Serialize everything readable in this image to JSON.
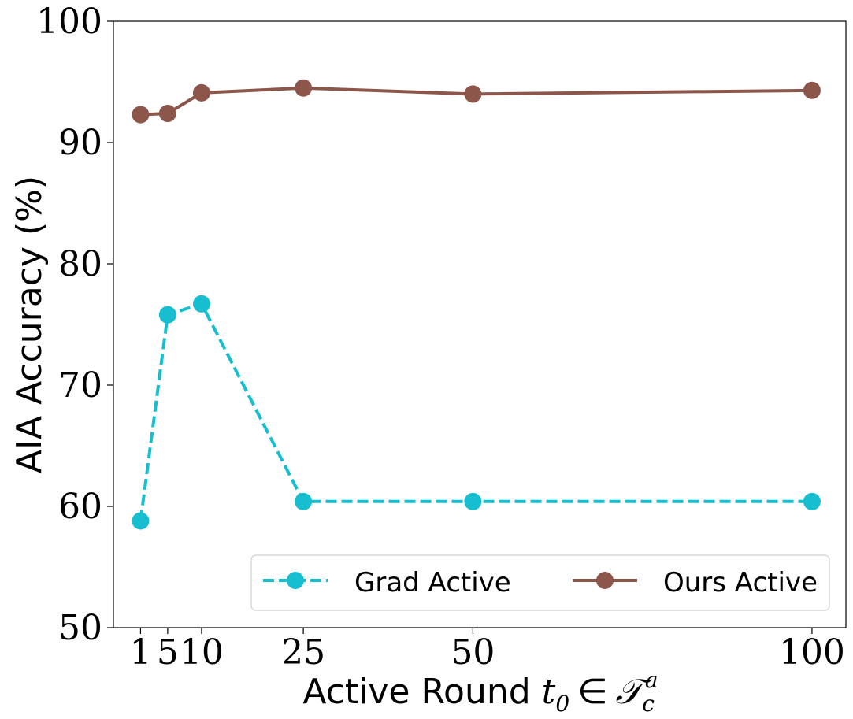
{
  "chart_data": {
    "type": "line",
    "x": [
      1,
      5,
      10,
      25,
      50,
      100
    ],
    "xtick_labels": [
      "1",
      "5",
      "10",
      "25",
      "50",
      "100"
    ],
    "ytick_labels": [
      "50",
      "60",
      "70",
      "80",
      "90",
      "100"
    ],
    "ytick_values": [
      50,
      60,
      70,
      80,
      90,
      100
    ],
    "xlim": [
      -3,
      105
    ],
    "ylim": [
      50,
      100
    ],
    "xlabel_text": "Active Round",
    "xlabel_math": {
      "var": "t",
      "sub": "0",
      "op": "∈",
      "set": "𝒯",
      "set_sub": "c",
      "set_sup": "a"
    },
    "ylabel": "AIA Accuracy (%)",
    "legend_position": "lower-right",
    "series": [
      {
        "name": "Grad Active",
        "color": "#17becf",
        "style": "dashed",
        "values": [
          58.8,
          75.8,
          76.7,
          60.4,
          60.4,
          60.4
        ]
      },
      {
        "name": "Ours Active",
        "color": "#8c564b",
        "style": "solid",
        "values": [
          92.3,
          92.4,
          94.1,
          94.5,
          94.0,
          94.3
        ]
      }
    ]
  }
}
